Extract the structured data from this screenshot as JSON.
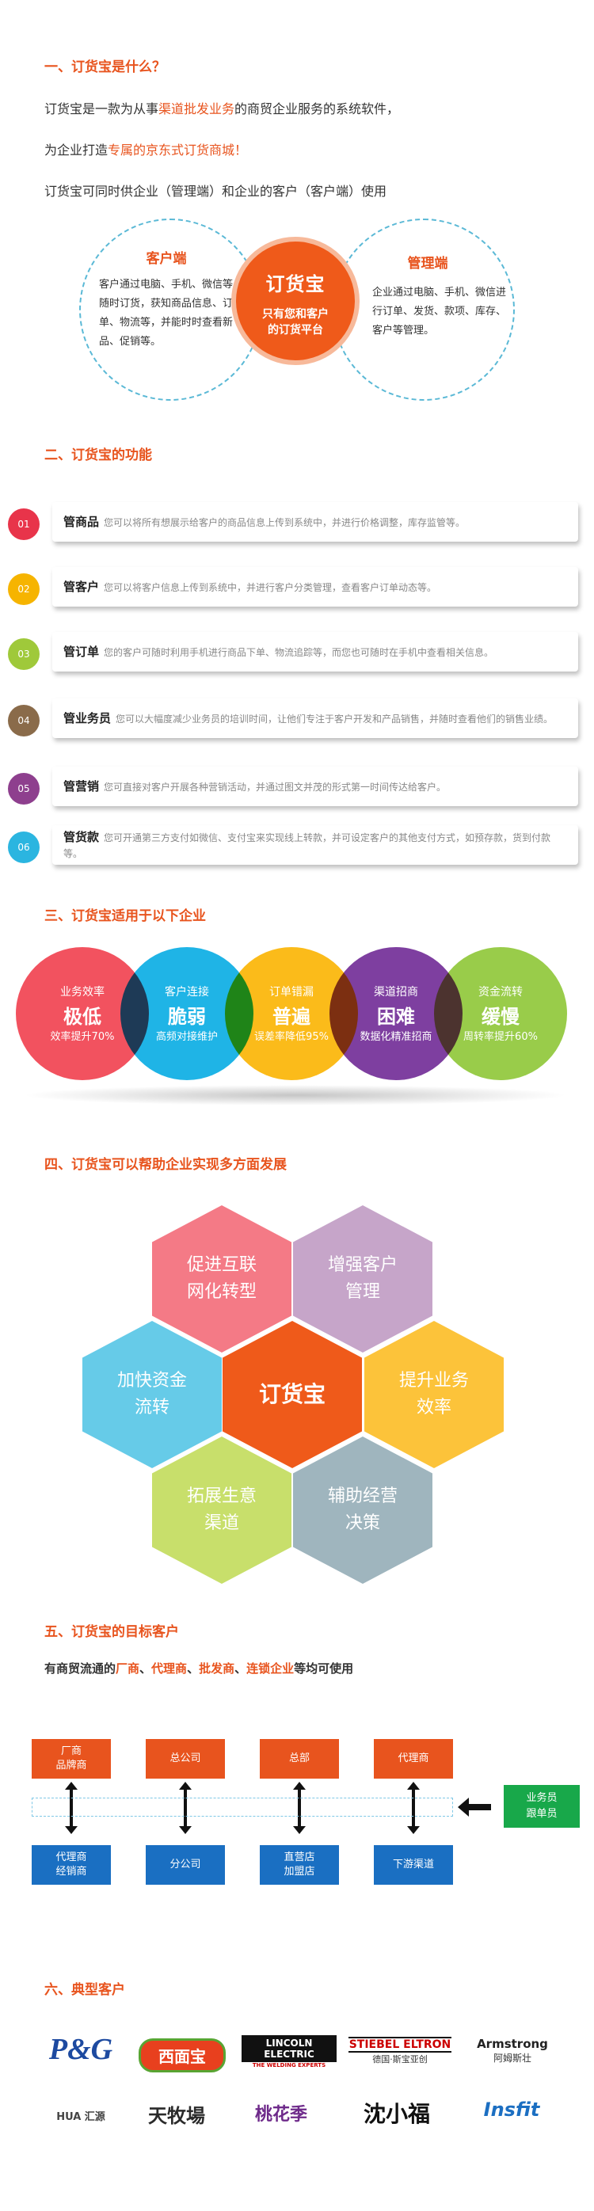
{
  "sec1": {
    "title": "一、订货宝是什么？",
    "line1_a": "订货宝是一款为从事",
    "line1_hl": "渠道批发业务",
    "line1_b": "的商贸企业服务的系统软件，",
    "line2_a": "为企业打造",
    "line2_hl": "专属的京东式订货商城！",
    "line3": "订货宝可同时供企业（管理端）和企业的客户（客户端）使用",
    "client_title": "客户端",
    "client_text": "客户通过电脑、手机、微信等随时订货，获知商品信息、订单、物流等，并能时时查看新品、促销等。",
    "center_logo": "订货宝",
    "center_sub1": "只有您和客户",
    "center_sub2": "的订货平台",
    "admin_title": "管理端",
    "admin_text": "企业通过电脑、手机、微信进行订单、发货、款项、库存、客户等管理。"
  },
  "sec2": {
    "title": "二、订货宝的功能",
    "items": [
      {
        "num": "01",
        "name": "管商品",
        "desc": "您可以将所有想展示给客户的商品信息上传到系统中，并进行价格调整，库存监管等。",
        "color": "#e8344a"
      },
      {
        "num": "02",
        "name": "管客户",
        "desc": "您可以将客户信息上传到系统中，并进行客户分类管理，查看客户订单动态等。",
        "color": "#f6b400"
      },
      {
        "num": "03",
        "name": "管订单",
        "desc": "您的客户可随时利用手机进行商品下单、物流追踪等，而您也可随时在手机中查看相关信息。",
        "color": "#9fc93a"
      },
      {
        "num": "04",
        "name": "管业务员",
        "desc": "您可以大幅度减少业务员的培训时间，让他们专注于客户开发和产品销售，并随时查看他们的销售业绩。",
        "color": "#8a6b4a"
      },
      {
        "num": "05",
        "name": "管营销",
        "desc": "您可直接对客户开展各种营销活动，并通过图文并茂的形式第一时间传达给客户。",
        "color": "#8e3f8e"
      },
      {
        "num": "06",
        "name": "管货款",
        "desc": "您可开通第三方支付如微信、支付宝来实现线上转款，并可设定客户的其他支付方式，如预存款，货到付款等。",
        "color": "#2bb5e0"
      }
    ]
  },
  "sec3": {
    "title": "三、订货宝适用于以下企业",
    "circles": [
      {
        "l1": "业务效率",
        "l2": "极低",
        "l3": "效率提升70%",
        "color": "#f2525f"
      },
      {
        "l1": "客户连接",
        "l2": "脆弱",
        "l3": "高频对接维护",
        "color": "#1fb4e6"
      },
      {
        "l1": "订单错漏",
        "l2": "普遍",
        "l3": "误差率降低95%",
        "color": "#fbbb1a"
      },
      {
        "l1": "渠道招商",
        "l2": "困难",
        "l3": "数据化精准招商",
        "color": "#7e3fa0"
      },
      {
        "l1": "资金流转",
        "l2": "缓慢",
        "l3": "周转率提升60%",
        "color": "#99cc4a"
      }
    ]
  },
  "sec4": {
    "title": "四、订货宝可以帮助企业实现多方面发展",
    "hex_center": "订货宝",
    "hexes": [
      {
        "text1": "促进互联",
        "text2": "网化转型",
        "color": "#f47a86"
      },
      {
        "text1": "增强客户",
        "text2": "管理",
        "color": "#c6a5c9"
      },
      {
        "text1": "加快资金",
        "text2": "流转",
        "color": "#66cbe8"
      },
      {
        "text1": "提升业务",
        "text2": "效率",
        "color": "#fcc33a"
      },
      {
        "text1": "拓展生意",
        "text2": "渠道",
        "color": "#c8df6b"
      },
      {
        "text1": "辅助经营",
        "text2": "决策",
        "color": "#9fb5be"
      }
    ],
    "center_color": "#ef5a1a"
  },
  "sec5": {
    "title": "五、订货宝的目标客户",
    "line_a": "有商贸流通的",
    "hl1": "厂商",
    "sep1": "、",
    "hl2": "代理商",
    "sep2": "、",
    "hl3": "批发商",
    "sep3": "、",
    "hl4": "连锁企业",
    "line_b": "等均可使用",
    "top": [
      [
        "厂商",
        "品牌商"
      ],
      [
        "总公司"
      ],
      [
        "总部"
      ],
      [
        "代理商"
      ]
    ],
    "bottom": [
      [
        "代理商",
        "经销商"
      ],
      [
        "分公司"
      ],
      [
        "直营店",
        "加盟店"
      ],
      [
        "下游渠道"
      ]
    ],
    "green": [
      "业务员",
      "跟单员"
    ]
  },
  "sec6": {
    "title": "六、典型客户",
    "logos_row1": [
      "P&G",
      "西面宝",
      "LINCOLN ELECTRIC",
      "STIEBEL ELTRON",
      "Armstrong"
    ],
    "logo_row1_sub": [
      "",
      "",
      "THE WELDING EXPERTS",
      "德国·斯宝亚创",
      "阿姆斯壮"
    ],
    "logos_row2": [
      "HUA 汇源",
      "天牧場",
      "桃花季",
      "沈小福",
      "Insfit"
    ]
  }
}
